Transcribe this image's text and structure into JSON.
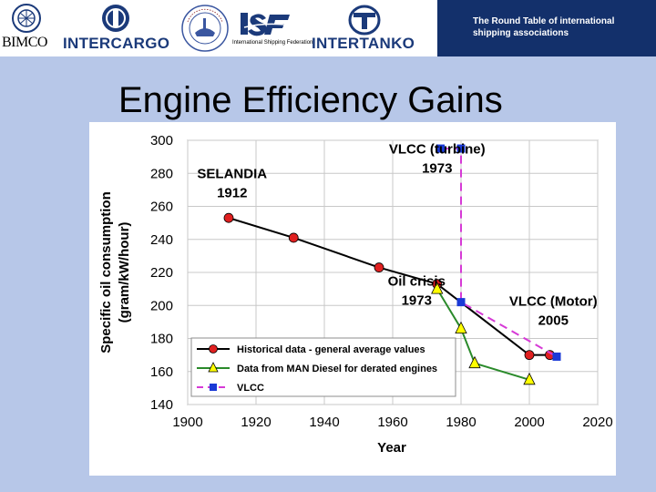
{
  "header": {
    "logos": [
      {
        "name": "BIMCO",
        "icon": "bimco-crest-icon"
      },
      {
        "name": "INTERCARGO",
        "icon": "intercargo-emblem-icon"
      },
      {
        "name": "",
        "icon": "international-chamber-of-shipping-seal-icon"
      },
      {
        "name": "",
        "icon": "isf-logo-icon",
        "caption": "International Shipping Federation"
      },
      {
        "name": "INTERTANKO",
        "icon": "intertanko-emblem-icon"
      }
    ],
    "round_table_line1": "The Round Table of international",
    "round_table_line2": "shipping associations",
    "band_color": "#13306b"
  },
  "slide": {
    "title": "Engine Efficiency Gains",
    "background": "#b7c7e8"
  },
  "chart_data": {
    "type": "line",
    "xlabel": "Year",
    "ylabel": "Specific oil consumption (gram/kW/hour)",
    "xlim": [
      1900,
      2020
    ],
    "ylim": [
      140,
      300
    ],
    "xticks": [
      1900,
      1920,
      1940,
      1960,
      1980,
      2000,
      2020
    ],
    "yticks": [
      140,
      160,
      180,
      200,
      220,
      240,
      260,
      280,
      300
    ],
    "grid": true,
    "legend": "bottom-left",
    "series": [
      {
        "name": "Historical data - general average values",
        "color": "#000000",
        "marker": "circle",
        "marker_color": "#e02020",
        "points": [
          [
            1912,
            253
          ],
          [
            1931,
            241
          ],
          [
            1956,
            223
          ],
          [
            1973,
            213
          ],
          [
            2000,
            170
          ],
          [
            2006,
            170
          ]
        ]
      },
      {
        "name": "Data from MAN Diesel for derated engines",
        "color": "#2a8a2a",
        "marker": "triangle",
        "marker_color": "#ffff00",
        "points": [
          [
            1973,
            210
          ],
          [
            1980,
            186
          ],
          [
            1984,
            165
          ],
          [
            2000,
            155
          ]
        ]
      },
      {
        "name": "VLCC",
        "color": "#d63ad6",
        "marker": "square",
        "marker_color": "#1a3ad6",
        "dashed": true,
        "points": [
          [
            1974,
            295
          ],
          [
            1980,
            295
          ],
          [
            1980,
            202
          ],
          [
            2008,
            169
          ]
        ]
      }
    ],
    "annotations": [
      {
        "id": "selandia",
        "line1": "SELANDIA",
        "line2": "1912",
        "x": 1913,
        "y": 277
      },
      {
        "id": "vlcc-turbine",
        "line1": "VLCC (turbine)",
        "line2": "1973",
        "x": 1973,
        "y": 292
      },
      {
        "id": "oil-crisis",
        "line1": "Oil crisis",
        "line2": "1973",
        "x": 1967,
        "y": 212
      },
      {
        "id": "vlcc-motor",
        "line1": "VLCC (Motor)",
        "line2": "2005",
        "x": 2007,
        "y": 200
      }
    ]
  }
}
